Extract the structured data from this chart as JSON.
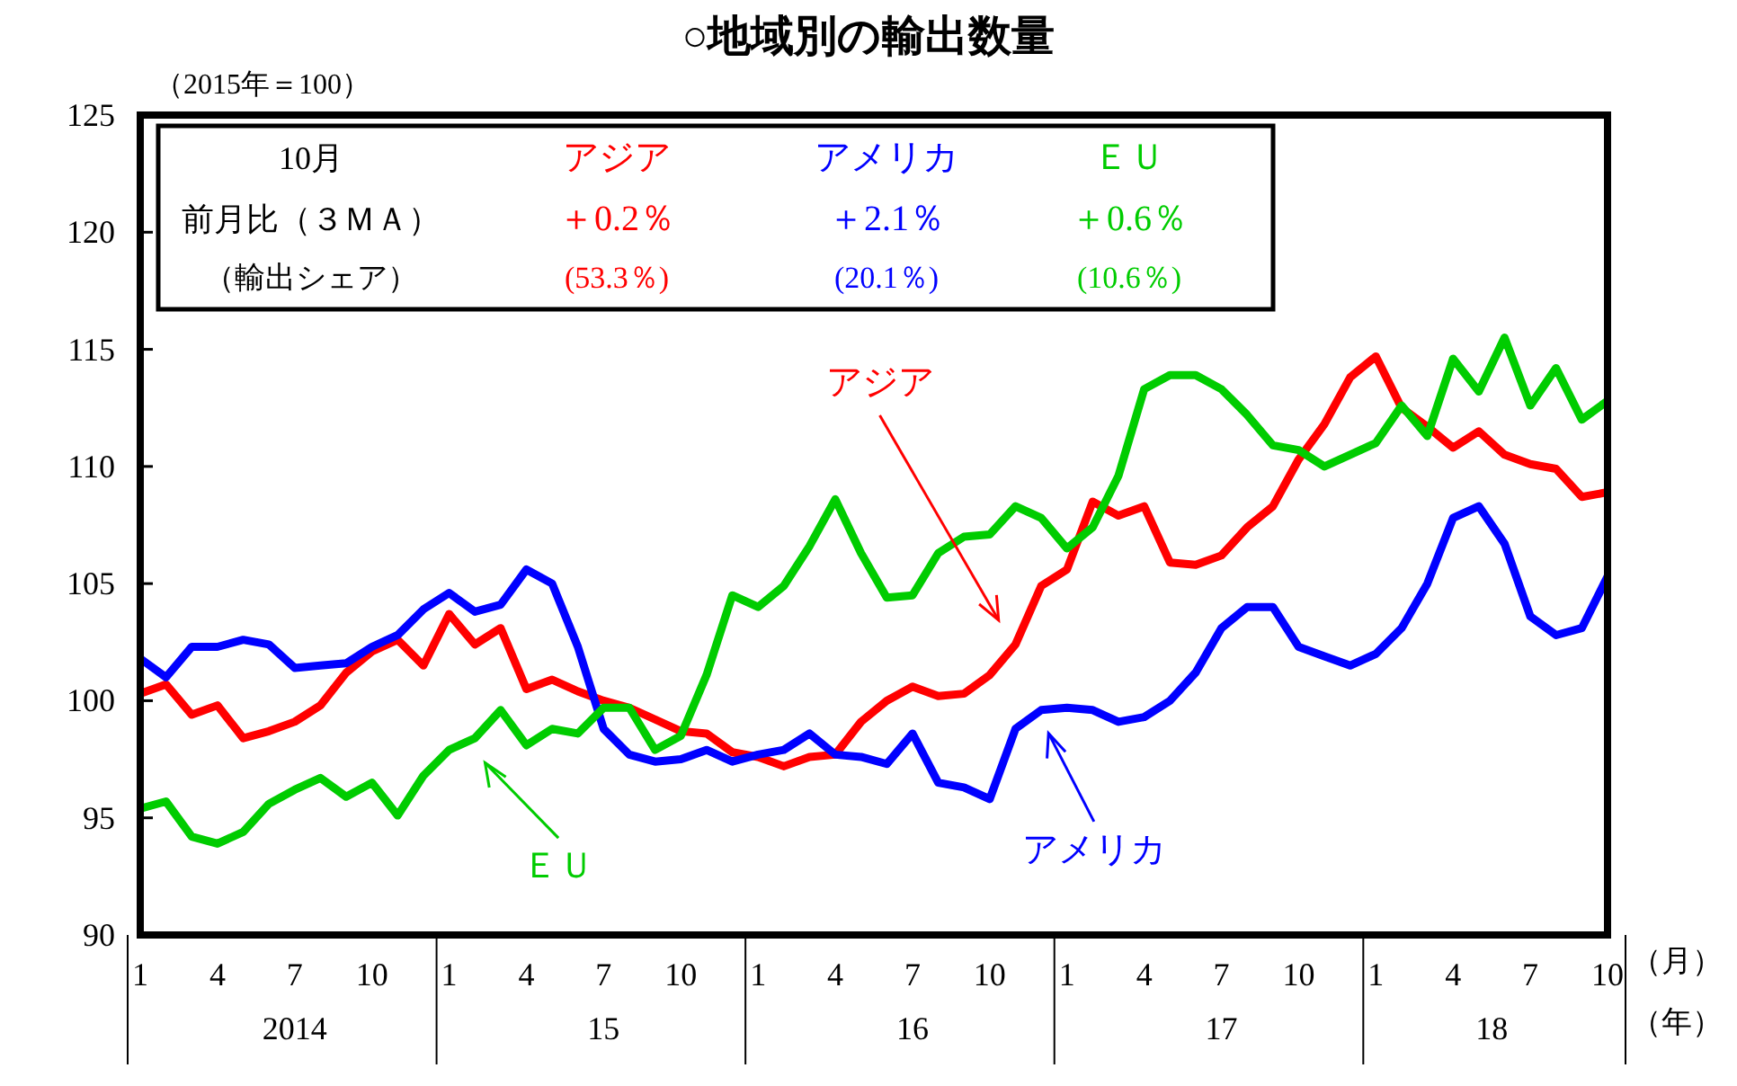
{
  "chart_data": {
    "type": "line",
    "title": "○地域別の輸出数量",
    "ylabel": "（2015年＝100）",
    "xlabel": "（月）",
    "x": [
      "2014-01",
      "2014-02",
      "2014-03",
      "2014-04",
      "2014-05",
      "2014-06",
      "2014-07",
      "2014-08",
      "2014-09",
      "2014-10",
      "2014-11",
      "2014-12",
      "2015-01",
      "2015-02",
      "2015-03",
      "2015-04",
      "2015-05",
      "2015-06",
      "2015-07",
      "2015-08",
      "2015-09",
      "2015-10",
      "2015-11",
      "2015-12",
      "2016-01",
      "2016-02",
      "2016-03",
      "2016-04",
      "2016-05",
      "2016-06",
      "2016-07",
      "2016-08",
      "2016-09",
      "2016-10",
      "2016-11",
      "2016-12",
      "2017-01",
      "2017-02",
      "2017-03",
      "2017-04",
      "2017-05",
      "2017-06",
      "2017-07",
      "2017-08",
      "2017-09",
      "2017-10",
      "2017-11",
      "2017-12",
      "2018-01",
      "2018-02",
      "2018-03",
      "2018-04",
      "2018-05",
      "2018-06",
      "2018-07",
      "2018-08",
      "2018-09",
      "2018-10"
    ],
    "series": [
      {
        "name": "アジア",
        "color": "#ff0000",
        "values": [
          100.3,
          100.7,
          99.4,
          99.8,
          98.4,
          98.7,
          99.1,
          99.8,
          101.2,
          102.1,
          102.6,
          101.5,
          103.7,
          102.4,
          103.1,
          100.5,
          100.9,
          100.4,
          100.0,
          99.7,
          99.2,
          98.7,
          98.6,
          97.8,
          97.6,
          97.2,
          97.6,
          97.7,
          99.1,
          100.0,
          100.6,
          100.2,
          100.3,
          101.1,
          102.4,
          104.9,
          105.6,
          108.5,
          107.9,
          108.3,
          105.9,
          105.8,
          106.2,
          107.4,
          108.3,
          110.3,
          111.8,
          113.8,
          114.7,
          112.5,
          111.7,
          110.8,
          111.5,
          110.5,
          110.1,
          109.9,
          108.7,
          108.9
        ]
      },
      {
        "name": "アメリカ",
        "color": "#0000ff",
        "values": [
          101.8,
          101.0,
          102.3,
          102.3,
          102.6,
          102.4,
          101.4,
          101.5,
          101.6,
          102.3,
          102.8,
          103.9,
          104.6,
          103.8,
          104.1,
          105.6,
          105.0,
          102.3,
          98.8,
          97.7,
          97.4,
          97.5,
          97.9,
          97.4,
          97.7,
          97.9,
          98.6,
          97.7,
          97.6,
          97.3,
          98.6,
          96.5,
          96.3,
          95.8,
          98.8,
          99.6,
          99.7,
          99.6,
          99.1,
          99.3,
          100.0,
          101.2,
          103.1,
          104.0,
          104.0,
          102.3,
          101.9,
          101.5,
          102.0,
          103.1,
          105.0,
          107.8,
          108.3,
          106.7,
          103.6,
          102.8,
          103.1,
          105.3
        ]
      },
      {
        "name": "ＥＵ",
        "color": "#00cc00",
        "values": [
          95.4,
          95.7,
          94.2,
          93.9,
          94.4,
          95.6,
          96.2,
          96.7,
          95.9,
          96.5,
          95.1,
          96.8,
          97.9,
          98.4,
          99.6,
          98.1,
          98.8,
          98.6,
          99.7,
          99.7,
          97.9,
          98.5,
          101.1,
          104.5,
          104.0,
          104.9,
          106.6,
          108.6,
          106.3,
          104.4,
          104.5,
          106.3,
          107.0,
          107.1,
          108.3,
          107.8,
          106.5,
          107.4,
          109.6,
          113.3,
          113.9,
          113.9,
          113.3,
          112.2,
          110.9,
          110.7,
          110.0,
          110.5,
          111.0,
          112.6,
          111.3,
          114.6,
          113.2,
          115.5,
          112.6,
          114.2,
          112.0,
          112.8
        ]
      }
    ],
    "xlim": [
      "2014-01",
      "2018-10"
    ],
    "xticks": [
      {
        "value": "2014-01",
        "label": "1"
      },
      {
        "value": "2014-04",
        "label": "4"
      },
      {
        "value": "2014-07",
        "label": "7"
      },
      {
        "value": "2014-10",
        "label": "10"
      },
      {
        "value": "2015-01",
        "label": "1"
      },
      {
        "value": "2015-04",
        "label": "4"
      },
      {
        "value": "2015-07",
        "label": "7"
      },
      {
        "value": "2015-10",
        "label": "10"
      },
      {
        "value": "2016-01",
        "label": "1"
      },
      {
        "value": "2016-04",
        "label": "4"
      },
      {
        "value": "2016-07",
        "label": "7"
      },
      {
        "value": "2016-10",
        "label": "10"
      },
      {
        "value": "2017-01",
        "label": "1"
      },
      {
        "value": "2017-04",
        "label": "4"
      },
      {
        "value": "2017-07",
        "label": "7"
      },
      {
        "value": "2017-10",
        "label": "10"
      },
      {
        "value": "2018-01",
        "label": "1"
      },
      {
        "value": "2018-04",
        "label": "4"
      },
      {
        "value": "2018-07",
        "label": "7"
      },
      {
        "value": "2018-10",
        "label": "10"
      }
    ],
    "ylim": [
      90,
      125
    ],
    "yticks": [
      90,
      95,
      100,
      105,
      110,
      115,
      120,
      125
    ],
    "grid": false,
    "legend": "top left",
    "line_style": "solid",
    "marker": "none",
    "annotations": [
      "10月",
      "前月比（３ＭＡ）",
      "（輸出シェア）",
      "＋0.2％",
      "(53.3％)",
      "＋2.1％",
      "(20.1％)",
      "＋0.6％",
      "(10.6％)",
      "アジア",
      "アメリカ",
      "ＥＵ",
      "2014",
      "15",
      "16",
      "17",
      "18",
      "（年）"
    ]
  }
}
